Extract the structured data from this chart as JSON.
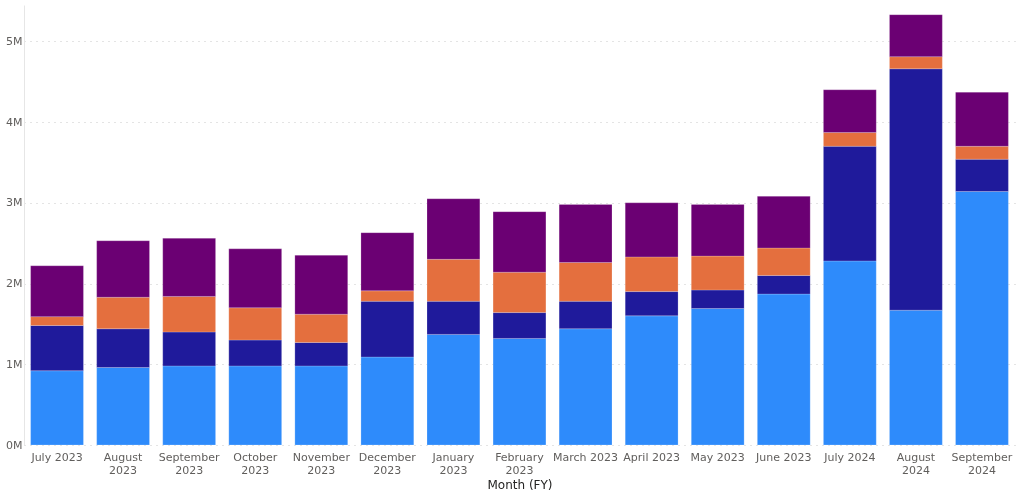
{
  "chart_data": {
    "type": "bar",
    "stacked": true,
    "xlabel": "Month (FY)",
    "categories": [
      "July 2023",
      "August 2023",
      "September 2023",
      "October 2023",
      "November 2023",
      "December 2023",
      "January 2023",
      "February 2023",
      "March 2023",
      "April 2023",
      "May 2023",
      "June 2023",
      "July 2024",
      "August 2024",
      "September 2024"
    ],
    "series": [
      {
        "color": "#2e8bfb",
        "values": [
          0.92,
          0.96,
          0.98,
          0.98,
          0.98,
          1.09,
          1.37,
          1.32,
          1.44,
          1.6,
          1.69,
          1.87,
          2.28,
          1.67,
          3.14
        ]
      },
      {
        "color": "#1f1a9b",
        "values": [
          0.56,
          0.48,
          0.42,
          0.32,
          0.29,
          0.69,
          0.41,
          0.32,
          0.34,
          0.3,
          0.23,
          0.23,
          1.42,
          2.99,
          0.4
        ]
      },
      {
        "color": "#e46f3e",
        "values": [
          0.11,
          0.39,
          0.44,
          0.4,
          0.35,
          0.13,
          0.52,
          0.5,
          0.48,
          0.43,
          0.42,
          0.34,
          0.17,
          0.15,
          0.16
        ]
      },
      {
        "color": "#6b0073",
        "values": [
          0.63,
          0.7,
          0.72,
          0.73,
          0.73,
          0.72,
          0.75,
          0.75,
          0.72,
          0.67,
          0.64,
          0.64,
          0.53,
          0.52,
          0.67
        ]
      }
    ],
    "ylim": [
      0,
      5.45
    ],
    "yticks": [
      {
        "value": 0,
        "label": "0M"
      },
      {
        "value": 1,
        "label": "1M"
      },
      {
        "value": 2,
        "label": "2M"
      },
      {
        "value": 3,
        "label": "3M"
      },
      {
        "value": 4,
        "label": "4M"
      },
      {
        "value": 5,
        "label": "5M"
      }
    ],
    "grid": "y",
    "legend": false
  }
}
